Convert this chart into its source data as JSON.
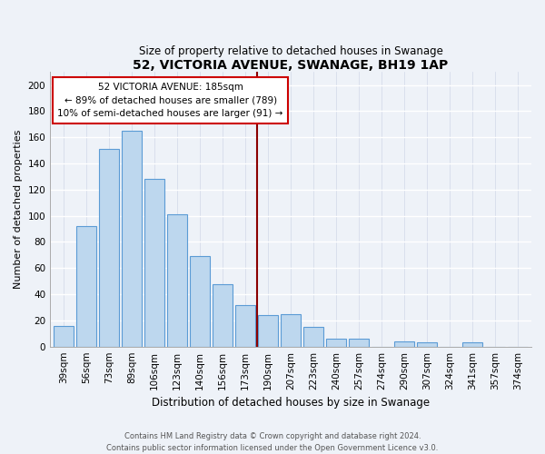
{
  "title": "52, VICTORIA AVENUE, SWANAGE, BH19 1AP",
  "subtitle": "Size of property relative to detached houses in Swanage",
  "xlabel": "Distribution of detached houses by size in Swanage",
  "ylabel": "Number of detached properties",
  "categories": [
    "39sqm",
    "56sqm",
    "73sqm",
    "89sqm",
    "106sqm",
    "123sqm",
    "140sqm",
    "156sqm",
    "173sqm",
    "190sqm",
    "207sqm",
    "223sqm",
    "240sqm",
    "257sqm",
    "274sqm",
    "290sqm",
    "307sqm",
    "324sqm",
    "341sqm",
    "357sqm",
    "374sqm"
  ],
  "values": [
    16,
    92,
    151,
    165,
    128,
    101,
    69,
    48,
    32,
    24,
    25,
    15,
    6,
    6,
    0,
    4,
    3,
    0,
    3,
    0,
    0
  ],
  "bar_color": "#bdd7ee",
  "bar_edge_color": "#5b9bd5",
  "vline_x": 8.5,
  "vline_color": "#8b0000",
  "ylim": [
    0,
    210
  ],
  "yticks": [
    0,
    20,
    40,
    60,
    80,
    100,
    120,
    140,
    160,
    180,
    200
  ],
  "annotation_title": "52 VICTORIA AVENUE: 185sqm",
  "annotation_line1": "← 89% of detached houses are smaller (789)",
  "annotation_line2": "10% of semi-detached houses are larger (91) →",
  "annotation_box_facecolor": "#ffffff",
  "annotation_box_edgecolor": "#cc0000",
  "footer_line1": "Contains HM Land Registry data © Crown copyright and database right 2024.",
  "footer_line2": "Contains public sector information licensed under the Open Government Licence v3.0.",
  "background_color": "#eef2f8",
  "grid_color": "#d0d8e8",
  "title_fontsize": 10,
  "subtitle_fontsize": 8.5,
  "ylabel_fontsize": 8,
  "xlabel_fontsize": 8.5,
  "tick_fontsize": 7.5,
  "ann_fontsize": 7.5,
  "footer_fontsize": 6
}
